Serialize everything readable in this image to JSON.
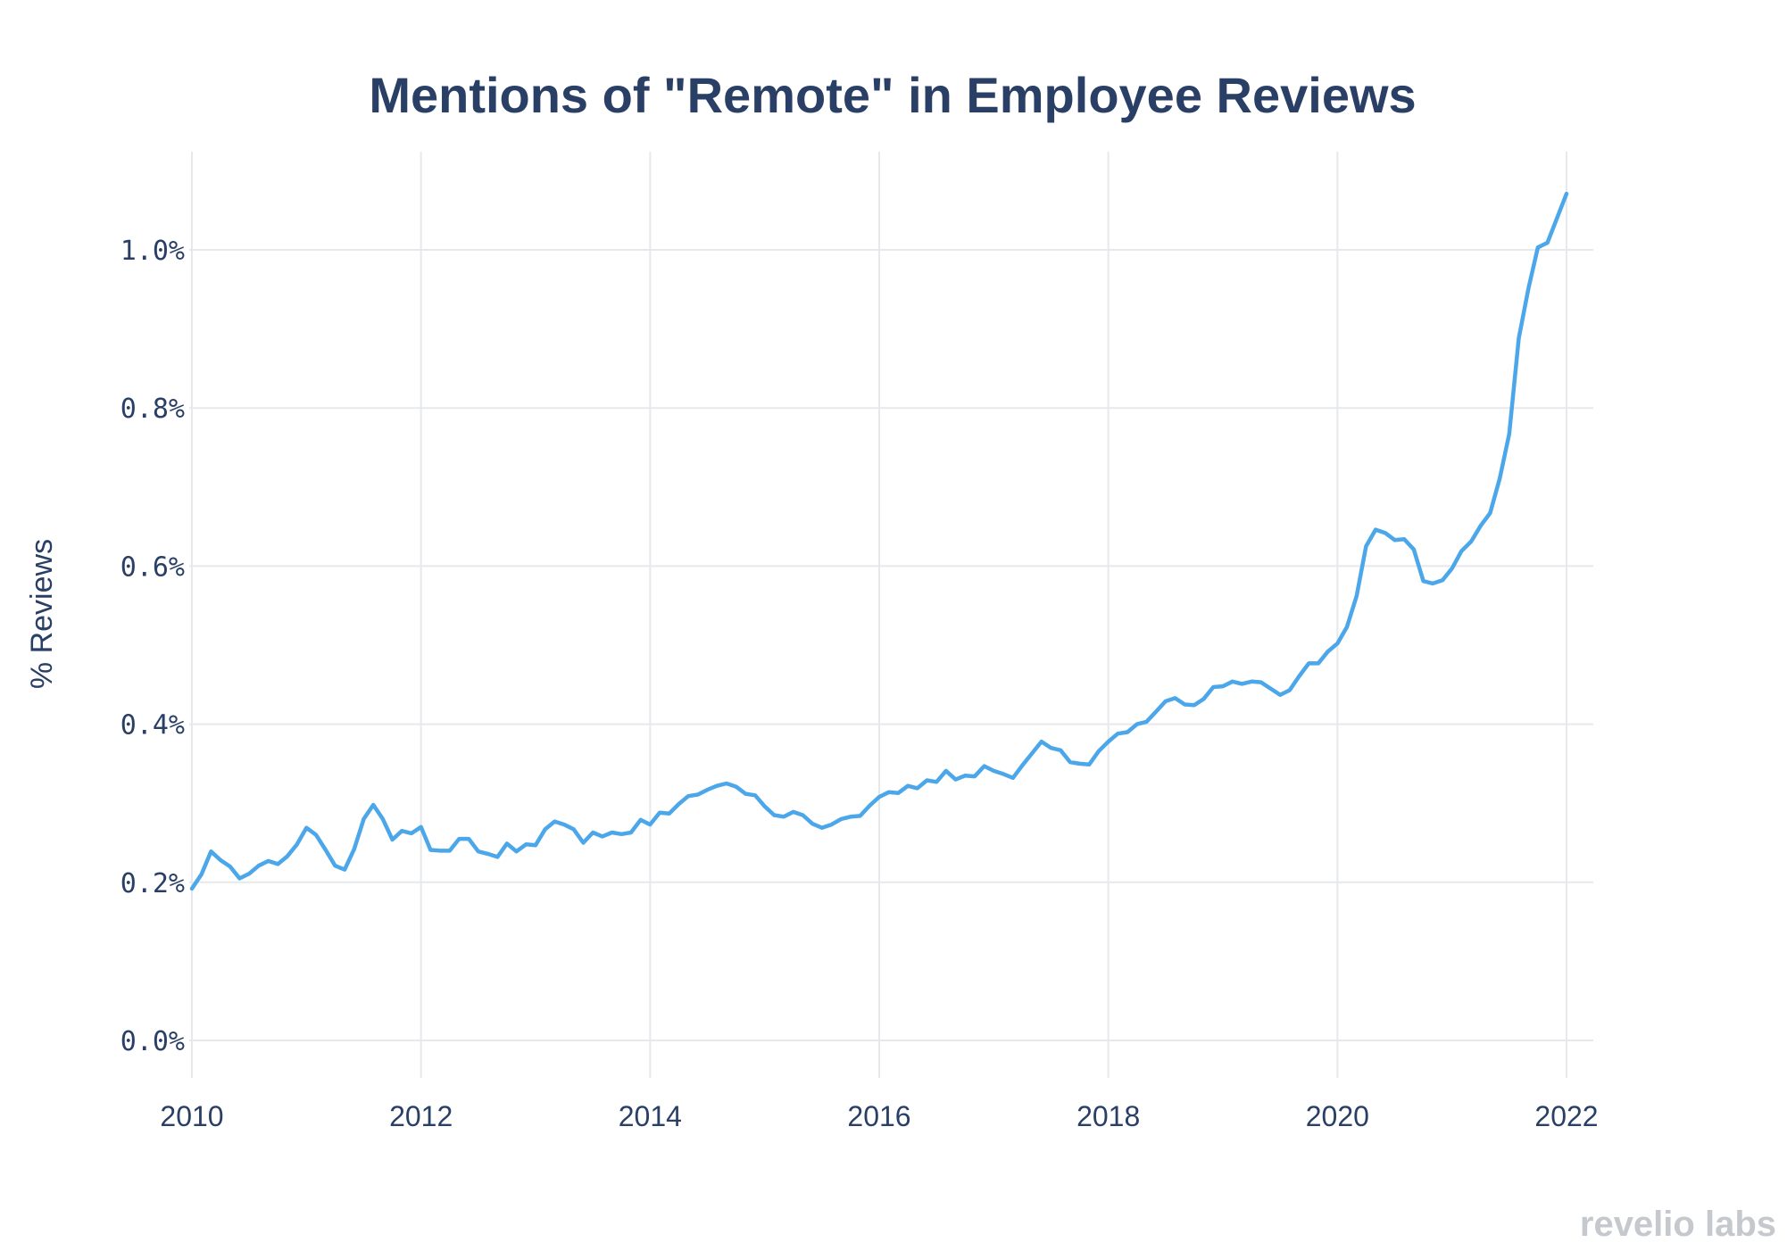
{
  "chart_data": {
    "type": "line",
    "title": "Mentions of \"Remote\" in Employee Reviews",
    "xlabel": "",
    "ylabel": "% Reviews",
    "xlim": [
      2010,
      2022.3
    ],
    "ylim": [
      -0.05,
      1.14
    ],
    "x_ticks": [
      2010,
      2012,
      2014,
      2016,
      2018,
      2020,
      2022
    ],
    "y_ticks": [
      0.0,
      0.2,
      0.4,
      0.6,
      0.8,
      1.0
    ],
    "y_tick_labels": [
      "0.0%",
      "0.2%",
      "0.4%",
      "0.6%",
      "0.8%",
      "1.0%"
    ],
    "x_tick_labels": [
      "2010",
      "2012",
      "2014",
      "2016",
      "2018",
      "2020",
      "2022"
    ],
    "grid": true,
    "color": "#4ba7ea",
    "series": [
      {
        "x": [
          2010.0,
          2010.083,
          2010.167,
          2010.25,
          2010.333,
          2010.417,
          2010.5,
          2010.583,
          2010.667,
          2010.75,
          2010.833,
          2010.917,
          2011.0,
          2011.083,
          2011.167,
          2011.25,
          2011.333,
          2011.417,
          2011.5,
          2011.583,
          2011.667,
          2011.75,
          2011.833,
          2011.917,
          2012.0,
          2012.083,
          2012.167,
          2012.25,
          2012.333,
          2012.417,
          2012.5,
          2012.583,
          2012.667,
          2012.75,
          2012.833,
          2012.917,
          2013.0,
          2013.083,
          2013.167,
          2013.25,
          2013.333,
          2013.417,
          2013.5,
          2013.583,
          2013.667,
          2013.75,
          2013.833,
          2013.917,
          2014.0,
          2014.083,
          2014.167,
          2014.25,
          2014.333,
          2014.417,
          2014.5,
          2014.583,
          2014.667,
          2014.75,
          2014.833,
          2014.917,
          2015.0,
          2015.083,
          2015.167,
          2015.25,
          2015.333,
          2015.417,
          2015.5,
          2015.583,
          2015.667,
          2015.75,
          2015.833,
          2015.917,
          2016.0,
          2016.083,
          2016.167,
          2016.25,
          2016.333,
          2016.417,
          2016.5,
          2016.583,
          2016.667,
          2016.75,
          2016.833,
          2016.917,
          2017.0,
          2017.083,
          2017.167,
          2017.25,
          2017.333,
          2017.417,
          2017.5,
          2017.583,
          2017.667,
          2017.75,
          2017.833,
          2017.917,
          2018.0,
          2018.083,
          2018.167,
          2018.25,
          2018.333,
          2018.417,
          2018.5,
          2018.583,
          2018.667,
          2018.75,
          2018.833,
          2018.917,
          2019.0,
          2019.083,
          2019.167,
          2019.25,
          2019.333,
          2019.417,
          2019.5,
          2019.583,
          2019.667,
          2019.75,
          2019.833,
          2019.917,
          2020.0,
          2020.083,
          2020.167,
          2020.25,
          2020.333,
          2020.417,
          2020.5,
          2020.583,
          2020.667,
          2020.75,
          2020.833,
          2020.917,
          2021.0,
          2021.083,
          2021.167,
          2021.25,
          2021.333,
          2021.417,
          2021.5,
          2021.583,
          2021.667,
          2021.75,
          2021.833,
          2021.917,
          2022.0
        ],
        "y": [
          0.192,
          0.21,
          0.239,
          0.228,
          0.22,
          0.205,
          0.211,
          0.221,
          0.227,
          0.223,
          0.233,
          0.248,
          0.269,
          0.26,
          0.241,
          0.221,
          0.216,
          0.242,
          0.28,
          0.298,
          0.28,
          0.254,
          0.265,
          0.262,
          0.27,
          0.241,
          0.24,
          0.24,
          0.255,
          0.255,
          0.239,
          0.236,
          0.232,
          0.249,
          0.239,
          0.248,
          0.247,
          0.267,
          0.277,
          0.273,
          0.267,
          0.25,
          0.263,
          0.258,
          0.263,
          0.261,
          0.263,
          0.279,
          0.273,
          0.288,
          0.287,
          0.299,
          0.309,
          0.311,
          0.317,
          0.322,
          0.325,
          0.321,
          0.312,
          0.31,
          0.296,
          0.285,
          0.283,
          0.289,
          0.285,
          0.274,
          0.269,
          0.273,
          0.28,
          0.283,
          0.284,
          0.297,
          0.308,
          0.314,
          0.313,
          0.322,
          0.319,
          0.329,
          0.327,
          0.341,
          0.33,
          0.335,
          0.334,
          0.347,
          0.341,
          0.337,
          0.332,
          0.348,
          0.363,
          0.378,
          0.37,
          0.367,
          0.352,
          0.35,
          0.349,
          0.366,
          0.378,
          0.388,
          0.39,
          0.4,
          0.403,
          0.416,
          0.429,
          0.433,
          0.425,
          0.424,
          0.432,
          0.447,
          0.448,
          0.454,
          0.451,
          0.454,
          0.453,
          0.445,
          0.437,
          0.443,
          0.461,
          0.477,
          0.477,
          0.492,
          0.502,
          0.523,
          0.562,
          0.625,
          0.646,
          0.642,
          0.633,
          0.634,
          0.621,
          0.581,
          0.578,
          0.582,
          0.597,
          0.619,
          0.631,
          0.651,
          0.667,
          0.711,
          0.767,
          0.888,
          0.951,
          1.003,
          1.009,
          1.04,
          1.071
        ]
      }
    ]
  },
  "brand": {
    "name": "revelio labs"
  }
}
